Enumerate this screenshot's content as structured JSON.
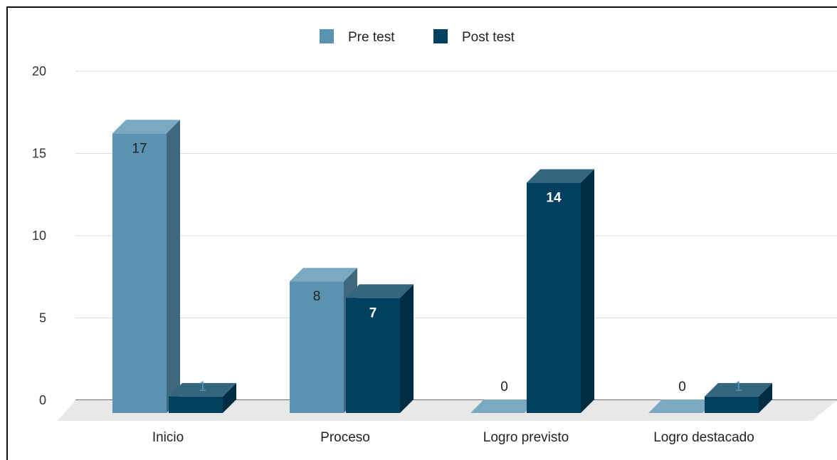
{
  "chart_data": {
    "type": "bar",
    "title": "",
    "xlabel": "",
    "ylabel": "",
    "categories": [
      "Inicio",
      "Proceso",
      "Logro previsto",
      "Logro destacado"
    ],
    "series": [
      {
        "name": "Pre test",
        "values": [
          17,
          8,
          0,
          0
        ],
        "color": "#5a93b2"
      },
      {
        "name": "Post test",
        "values": [
          1,
          7,
          14,
          1
        ],
        "color": "#01405f"
      }
    ],
    "ylim": [
      0,
      20
    ],
    "yticks": [
      "0",
      "5",
      "10",
      "15",
      "20"
    ],
    "grid": true,
    "legend_position": "top",
    "style": "3d-columns"
  }
}
